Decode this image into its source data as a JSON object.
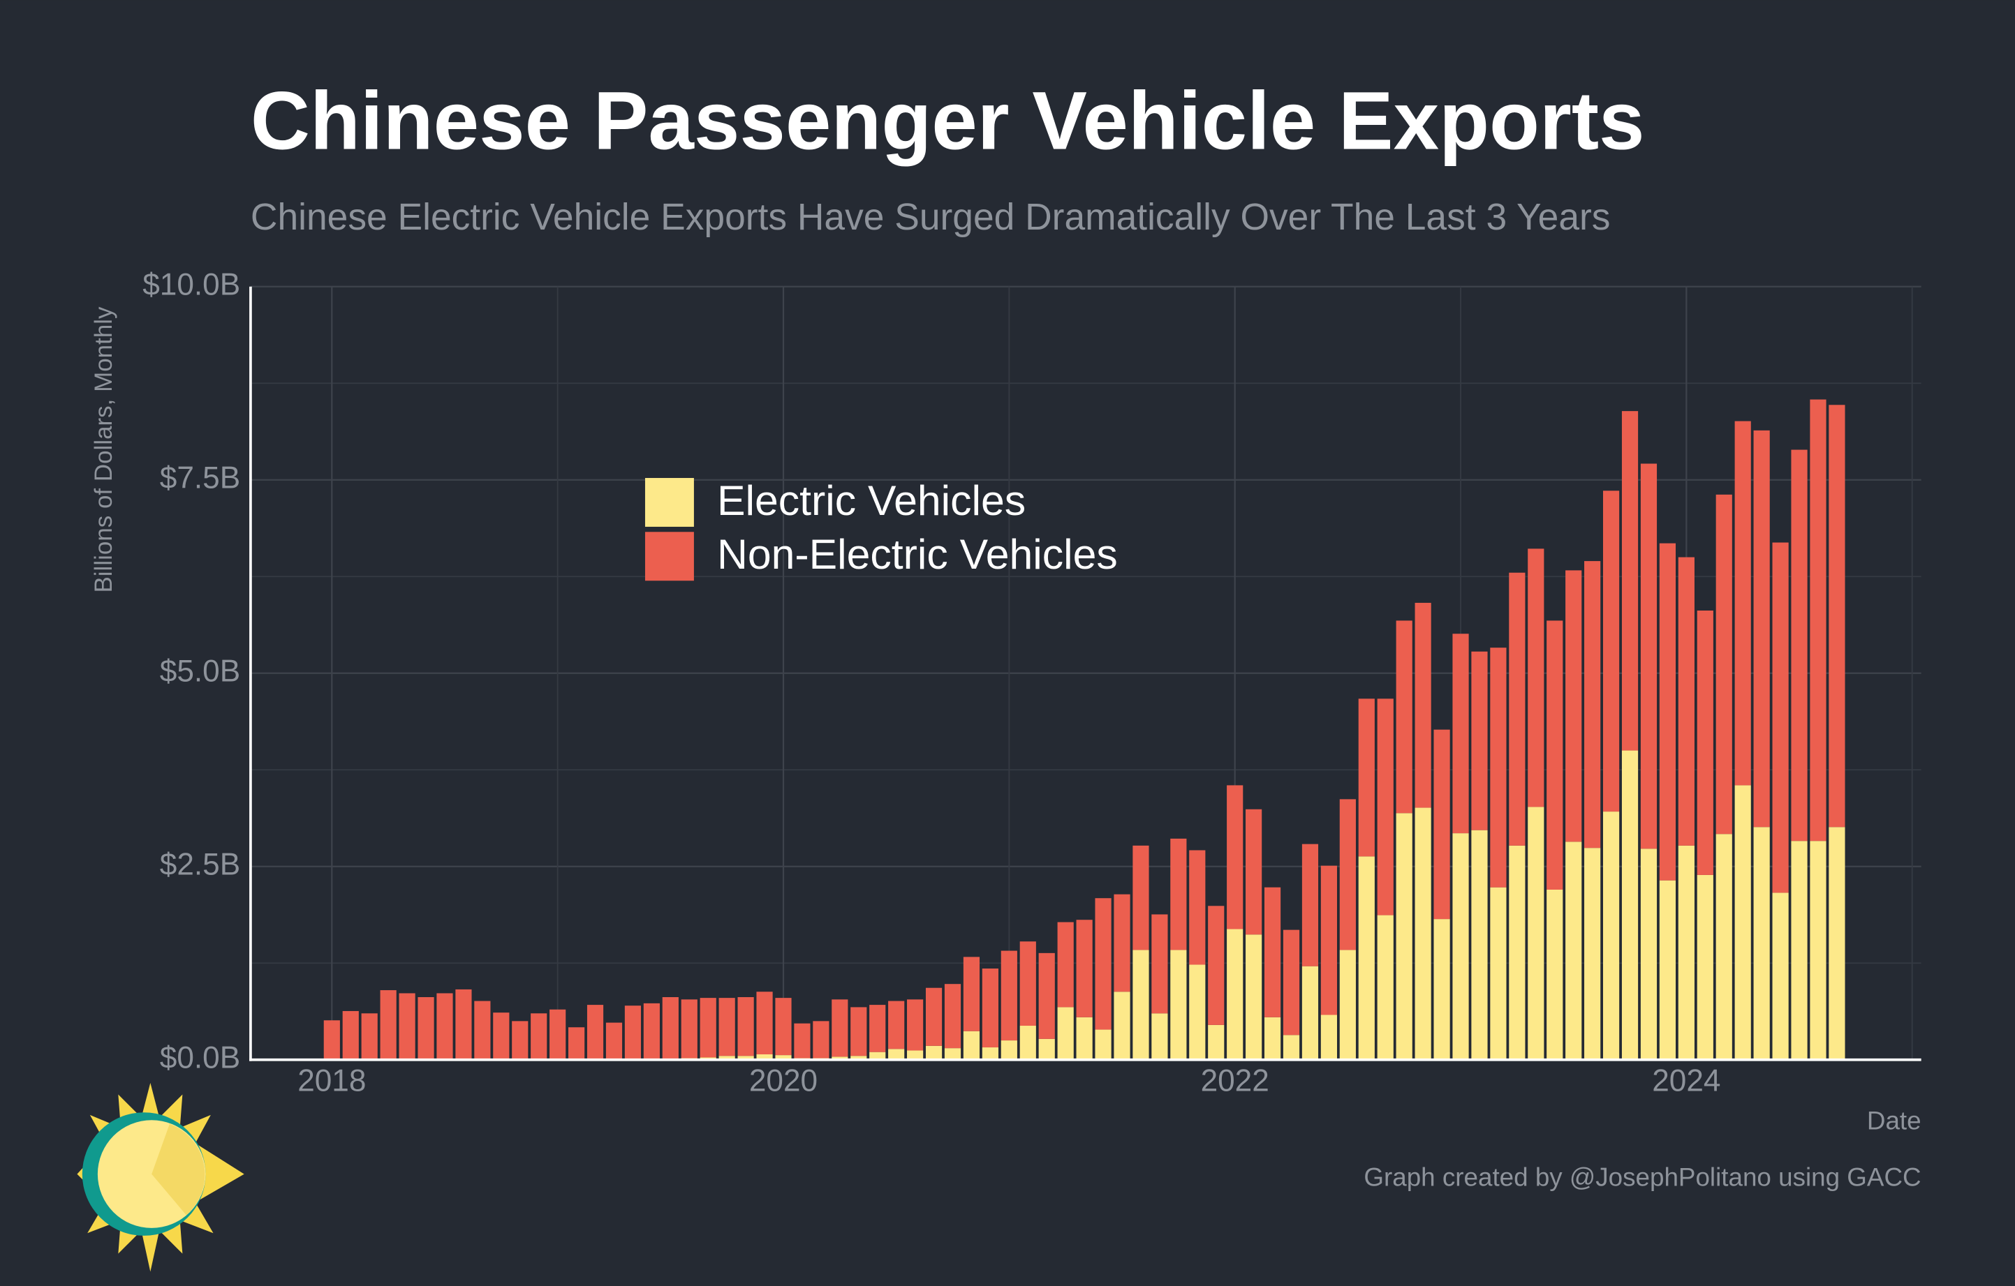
{
  "chart_data": {
    "type": "stacked_bar",
    "title": "Chinese Passenger Vehicle Exports",
    "subtitle": "Chinese Electric Vehicle Exports Have Surged Dramatically Over The Last 3 Years",
    "y_label": "Billions of Dollars, Monthly",
    "x_label": "Date",
    "credit": "Graph created by @JosephPolitano using GACC",
    "x": [
      "2018-01",
      "2018-02",
      "2018-03",
      "2018-04",
      "2018-05",
      "2018-06",
      "2018-07",
      "2018-08",
      "2018-09",
      "2018-10",
      "2018-11",
      "2018-12",
      "2019-01",
      "2019-02",
      "2019-03",
      "2019-04",
      "2019-05",
      "2019-06",
      "2019-07",
      "2019-08",
      "2019-09",
      "2019-10",
      "2019-11",
      "2019-12",
      "2020-01",
      "2020-02",
      "2020-03",
      "2020-04",
      "2020-05",
      "2020-06",
      "2020-07",
      "2020-08",
      "2020-09",
      "2020-10",
      "2020-11",
      "2020-12",
      "2021-01",
      "2021-02",
      "2021-03",
      "2021-04",
      "2021-05",
      "2021-06",
      "2021-07",
      "2021-08",
      "2021-09",
      "2021-10",
      "2021-11",
      "2021-12",
      "2022-01",
      "2022-02",
      "2022-03",
      "2022-04",
      "2022-05",
      "2022-06",
      "2022-07",
      "2022-08",
      "2022-09",
      "2022-10",
      "2022-11",
      "2022-12",
      "2023-01",
      "2023-02",
      "2023-03",
      "2023-04",
      "2023-05",
      "2023-06",
      "2023-07",
      "2023-08",
      "2023-09",
      "2023-10",
      "2023-11",
      "2023-12",
      "2024-01",
      "2024-02",
      "2024-03",
      "2024-04",
      "2024-05",
      "2024-06",
      "2024-07",
      "2024-08",
      "2024-09"
    ],
    "series": [
      {
        "name": "Electric Vehicles",
        "color": "#fde98a",
        "values": [
          0,
          0,
          0,
          0,
          0,
          0,
          0,
          0,
          0,
          0,
          0,
          0,
          0,
          0,
          0,
          0,
          0,
          0,
          0,
          0.02,
          0.03,
          0.05,
          0.05,
          0.07,
          0.06,
          0.02,
          0.02,
          0.04,
          0.05,
          0.1,
          0.14,
          0.12,
          0.18,
          0.15,
          0.37,
          0.16,
          0.25,
          0.44,
          0.27,
          0.68,
          0.55,
          0.39,
          0.88,
          1.42,
          0.6,
          1.42,
          1.23,
          0.45,
          1.69,
          1.62,
          0.55,
          0.32,
          1.21,
          0.58,
          1.42,
          2.63,
          1.87,
          3.19,
          3.26,
          1.82,
          2.93,
          2.97,
          2.23,
          2.77,
          3.27,
          2.2,
          2.82,
          2.74,
          3.21,
          4.0,
          2.73,
          2.32,
          2.77,
          2.39,
          2.92,
          3.55,
          3.01,
          2.16,
          2.83,
          2.83,
          3.01
        ]
      },
      {
        "name": "Non-Electric Vehicles",
        "color": "#ec5f4f",
        "values": [
          0.51,
          0.63,
          0.6,
          0.9,
          0.86,
          0.81,
          0.86,
          0.91,
          0.76,
          0.61,
          0.5,
          0.6,
          0.65,
          0.42,
          0.71,
          0.48,
          0.7,
          0.73,
          0.81,
          0.76,
          0.77,
          0.75,
          0.76,
          0.81,
          0.74,
          0.45,
          0.48,
          0.74,
          0.63,
          0.61,
          0.62,
          0.66,
          0.75,
          0.83,
          0.96,
          1.02,
          1.16,
          1.09,
          1.11,
          1.1,
          1.26,
          1.7,
          1.26,
          1.35,
          1.28,
          1.44,
          1.48,
          1.54,
          1.86,
          1.62,
          1.68,
          1.36,
          1.58,
          1.93,
          1.95,
          2.04,
          2.8,
          2.49,
          2.65,
          2.45,
          2.58,
          2.31,
          3.1,
          3.53,
          3.34,
          3.48,
          3.51,
          3.71,
          4.15,
          4.39,
          4.98,
          4.36,
          3.73,
          3.42,
          4.39,
          4.71,
          5.13,
          4.53,
          5.06,
          5.71,
          5.46
        ]
      }
    ],
    "xlim": [
      2017.64,
      2025.04
    ],
    "xticks": [
      2018,
      2020,
      2022,
      2024
    ],
    "x_minor_grid": [
      2019,
      2021,
      2023,
      2025
    ],
    "ylim": [
      0,
      10
    ],
    "yticks": [
      {
        "value": 0,
        "label": "$0.0B"
      },
      {
        "value": 2.5,
        "label": "$2.5B"
      },
      {
        "value": 5,
        "label": "$5.0B"
      },
      {
        "value": 7.5,
        "label": "$7.5B"
      },
      {
        "value": 10,
        "label": "$10.0B"
      }
    ],
    "y_minor_grid": [
      1.25,
      3.75,
      6.25,
      8.75
    ],
    "grid": true
  }
}
